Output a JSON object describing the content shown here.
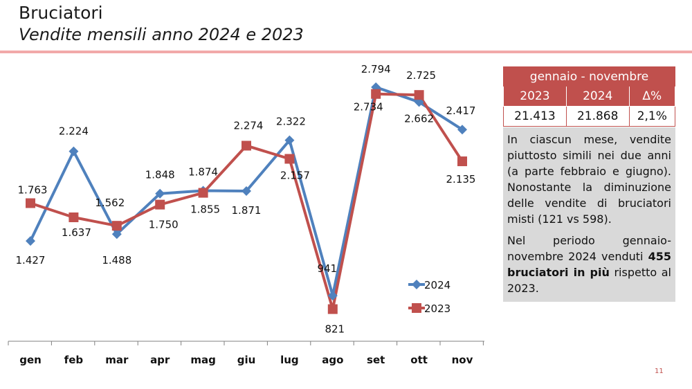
{
  "slide": {
    "title": "Bruciatori",
    "subtitle": "Vendite mensili anno 2024 e 2023",
    "page_number": "11"
  },
  "summary": {
    "period": "gennaio - novembre",
    "columns": [
      "2023",
      "2024",
      "Δ%"
    ],
    "values": [
      "21.413",
      "21.868",
      "2,1%"
    ]
  },
  "notes": {
    "paragraph1": "In ciascun mese, vendite piuttosto simili nei due anni (a parte febbraio e giugno). Nonostante la diminuzione delle vendite di bruciatori misti (121 vs 598).",
    "paragraph2_before": "Nel periodo gennaio-novembre 2024 venduti ",
    "paragraph2_bold": "455 bruciatori in più",
    "paragraph2_after": " rispetto al 2023."
  },
  "chart_data": {
    "type": "line",
    "categories": [
      "gen",
      "feb",
      "mar",
      "apr",
      "mag",
      "giu",
      "lug",
      "ago",
      "set",
      "ott",
      "nov"
    ],
    "series": [
      {
        "name": "2024",
        "color": "#4f81bd",
        "marker": "diamond",
        "values": [
          1427,
          2224,
          1488,
          1848,
          1874,
          1871,
          2322,
          941,
          2794,
          2662,
          2417
        ],
        "labels": [
          "1.427",
          "2.224",
          "1.488",
          "1.848",
          "1.874",
          "1.871",
          "2.322",
          "941",
          "2.794",
          "2.662",
          "2.417"
        ]
      },
      {
        "name": "2023",
        "color": "#c0504d",
        "marker": "square",
        "values": [
          1763,
          1637,
          1562,
          1750,
          1855,
          2274,
          2157,
          821,
          2734,
          2725,
          2135
        ],
        "labels": [
          "1.763",
          "1.637",
          "1.562",
          "1.750",
          "1.855",
          "2.274",
          "2.157",
          "821",
          "2.734",
          "2.725",
          "2.135"
        ]
      }
    ],
    "legend_position": "right",
    "grid": false
  }
}
